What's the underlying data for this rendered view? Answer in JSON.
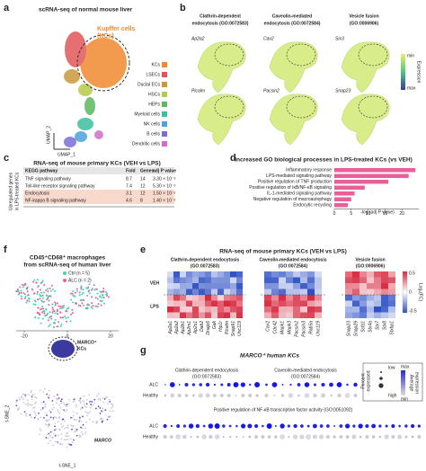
{
  "panel_labels": [
    "a",
    "b",
    "c",
    "d",
    "e",
    "f",
    "g"
  ],
  "a": {
    "title": "scRNA-seq of normal mouse liver",
    "callout_lines": [
      "Kupffer cells",
      "(KCs)"
    ],
    "legend": [
      {
        "name": "KCs",
        "color": "#f0892f"
      },
      {
        "name": "LSECs",
        "color": "#e15759"
      },
      {
        "name": "Ductal ECs",
        "color": "#c99a3c"
      },
      {
        "name": "HSCs",
        "color": "#b8c94a"
      },
      {
        "name": "HEPs",
        "color": "#5cb85c"
      },
      {
        "name": "Myeloid cells",
        "color": "#3fbfa0"
      },
      {
        "name": "NK cells",
        "color": "#4aa3df"
      },
      {
        "name": "B cells",
        "color": "#7b6fd6"
      },
      {
        "name": "Dendritic cells",
        "color": "#d06fc8"
      }
    ],
    "x_label": "UMAP_1",
    "y_label": "UMAP_2"
  },
  "b": {
    "groups": [
      {
        "title_lines": [
          "Clathrin-dependent",
          "endocytosis (GO:0072583)"
        ],
        "genes": [
          "Ap2a2",
          "Picalm"
        ]
      },
      {
        "title_lines": [
          "Caveolin-mediated",
          "endocytosis (GO:0072584)"
        ],
        "genes": [
          "Cav2",
          "Pacsin2"
        ]
      },
      {
        "title_lines": [
          "Vesicle fusion",
          "(GO:0006906)"
        ],
        "genes": [
          "Six3",
          "Snap23"
        ]
      }
    ],
    "colorbar": {
      "label": "Expression",
      "min": "min",
      "max": "max"
    }
  },
  "c": {
    "title": "RNA-seq of mouse primary KCs (VEH vs LPS)",
    "side_label_lines": [
      "Upregulated genes",
      "in LPS-treated KCs"
    ],
    "table": {
      "header": [
        "KEGG pathway",
        "Fold",
        "Genes",
        "adj P value"
      ],
      "rows": [
        [
          "TNF signaling pathway",
          8.7,
          14,
          "3.30 × 10⁻³"
        ],
        [
          "Toll-like receptor signaling pathway",
          7.4,
          12,
          "5.30 × 10⁻³"
        ],
        [
          "Endocytosis",
          3.1,
          12,
          "1.50 × 10⁻²"
        ],
        [
          "NF-kappa B signaling pathway",
          4.6,
          8,
          "1.40 × 10⁻²"
        ]
      ]
    }
  },
  "chart_data": {
    "type": "bar",
    "title": "Increased GO biological processes in LPS-treated KCs (vs VEH)",
    "categories": [
      "Inflammatory response",
      "LPS-mediated signaling pathway",
      "Positive regulation of TNF production",
      "Positive regulation of IκB/NF-κB signaling",
      "IL-1-mediated signaling pathway",
      "Negative regulation of macroautophagy",
      "Endocytic recycling"
    ],
    "values": [
      24,
      22,
      16,
      9,
      6,
      5,
      4
    ],
    "color": "#e8609a",
    "label_colors": [
      "#e0283c",
      "#222222",
      "#222222",
      "#e0283c",
      "#222222",
      "#222222",
      "#e0283c"
    ],
    "x_label": "-log (adj P value)",
    "xlim": [
      0,
      25
    ],
    "xticks": [
      0,
      5,
      10,
      15,
      20
    ]
  },
  "e": {
    "title": "RNA-seq of mouse primary KCs (VEH vs LPS)",
    "groups": [
      {
        "title_lines": [
          "Clathrin-dependent endocytosis",
          "(GO:0072583)"
        ],
        "genes": [
          "Ap2a1",
          "Ap2a2",
          "Ap2b1",
          "Ap2m1",
          "Ap2s1",
          "Dab2",
          "Dnajc6",
          "Gak",
          "Hip1r",
          "Picalm",
          "Snap91",
          "Unc119"
        ]
      },
      {
        "title_lines": [
          "Caveolin-mediated endocytosis",
          "(GO:0072584)"
        ],
        "genes": [
          "Cav2",
          "Cdc42",
          "Mapk1",
          "Mapk3",
          "Pacsin2",
          "Pacsin3",
          "Rab5a",
          "Unc119"
        ]
      },
      {
        "title_lines": [
          "Vesicle fusion",
          "(GO:0006906)"
        ],
        "genes": [
          "Snap23",
          "Snap29",
          "Scfd1",
          "Stx4a",
          "Stx7",
          "Stx8",
          "Stxbp1"
        ]
      }
    ],
    "rows": [
      "VEH",
      "LPS"
    ],
    "colorbar_label": "Log₂(FC)",
    "colorbar_ticks": [
      "0.5",
      "0",
      "-0.5"
    ]
  },
  "f": {
    "title_lines": [
      "CD45⁺CD68⁺ macrophages",
      "from scRNA-seq of human liver"
    ],
    "legend": [
      {
        "name": "Ctrl (n = 5)",
        "color": "#3fd6b0"
      },
      {
        "name": "ALC (n = 2)",
        "color": "#e8609a"
      }
    ],
    "callout_lines": [
      "MARCO⁺",
      "KCs"
    ],
    "gene": "MARCO",
    "x_label": "t-SNE_1",
    "y_label": "t-SNE_2",
    "xticks": [
      -20,
      0,
      20
    ]
  },
  "g": {
    "title": "MARCO⁺ human KCs",
    "groups": [
      {
        "title_lines": [
          "Clathrin-dependent endocytosis",
          "(GO:0072583)"
        ]
      },
      {
        "title_lines": [
          "Caveolin-mediated endocytosis",
          "(GO:0072584)"
        ]
      },
      {
        "title_lines": [
          "Positive regulation of NF-κB transcription factor activity (GO:0051092)"
        ]
      }
    ],
    "conditions": [
      "ALC",
      "Healthy"
    ],
    "legend": {
      "size_label_lines": [
        "Percent",
        "expressed"
      ],
      "size_low": "low",
      "size_high": "high",
      "color_label_lines": [
        "Average",
        "expression"
      ],
      "color_max": "max",
      "color_min": "min"
    }
  }
}
